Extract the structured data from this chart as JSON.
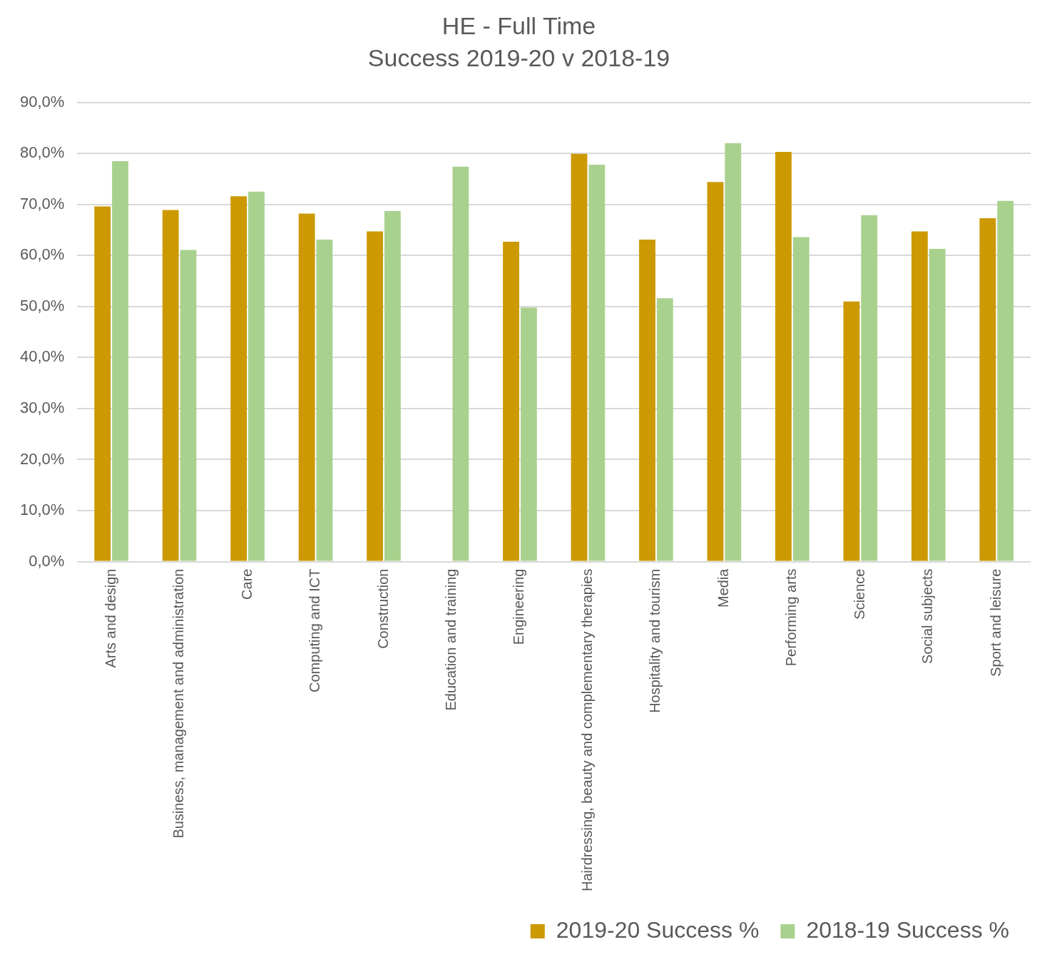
{
  "chart_data": {
    "type": "bar",
    "title": "HE - Full Time",
    "subtitle": "Success 2019-20 v 2018-19",
    "categories": [
      "Arts and design",
      "Business, management and administration",
      "Care",
      "Computing and ICT",
      "Construction",
      "Education and training",
      "Engineering",
      "Hairdressing, beauty and complementary therapies",
      "Hospitality and tourism",
      "Media",
      "Performing arts",
      "Science",
      "Social subjects",
      "Sport and leisure"
    ],
    "series": [
      {
        "name": "2019-20 Success %",
        "color": "#cc9900",
        "values": [
          69.6,
          68.9,
          71.6,
          68.2,
          64.7,
          null,
          62.7,
          79.9,
          63.1,
          74.4,
          80.3,
          51.0,
          64.7,
          67.3
        ]
      },
      {
        "name": "2018-19 Success %",
        "color": "#a9d18e",
        "values": [
          78.5,
          61.1,
          72.5,
          63.1,
          68.7,
          77.4,
          49.8,
          77.8,
          51.6,
          82.0,
          63.6,
          67.9,
          61.3,
          70.7
        ]
      }
    ],
    "ylim": [
      0,
      90
    ],
    "yticks": [
      {
        "value": 0,
        "label": "0,0%"
      },
      {
        "value": 10,
        "label": "10,0%"
      },
      {
        "value": 20,
        "label": "20,0%"
      },
      {
        "value": 30,
        "label": "30,0%"
      },
      {
        "value": 40,
        "label": "40,0%"
      },
      {
        "value": 50,
        "label": "50,0%"
      },
      {
        "value": 60,
        "label": "60,0%"
      },
      {
        "value": 70,
        "label": "70,0%"
      },
      {
        "value": 80,
        "label": "80,0%"
      },
      {
        "value": 90,
        "label": "90,0%"
      }
    ],
    "grid": "y",
    "legend": "bottom right"
  }
}
